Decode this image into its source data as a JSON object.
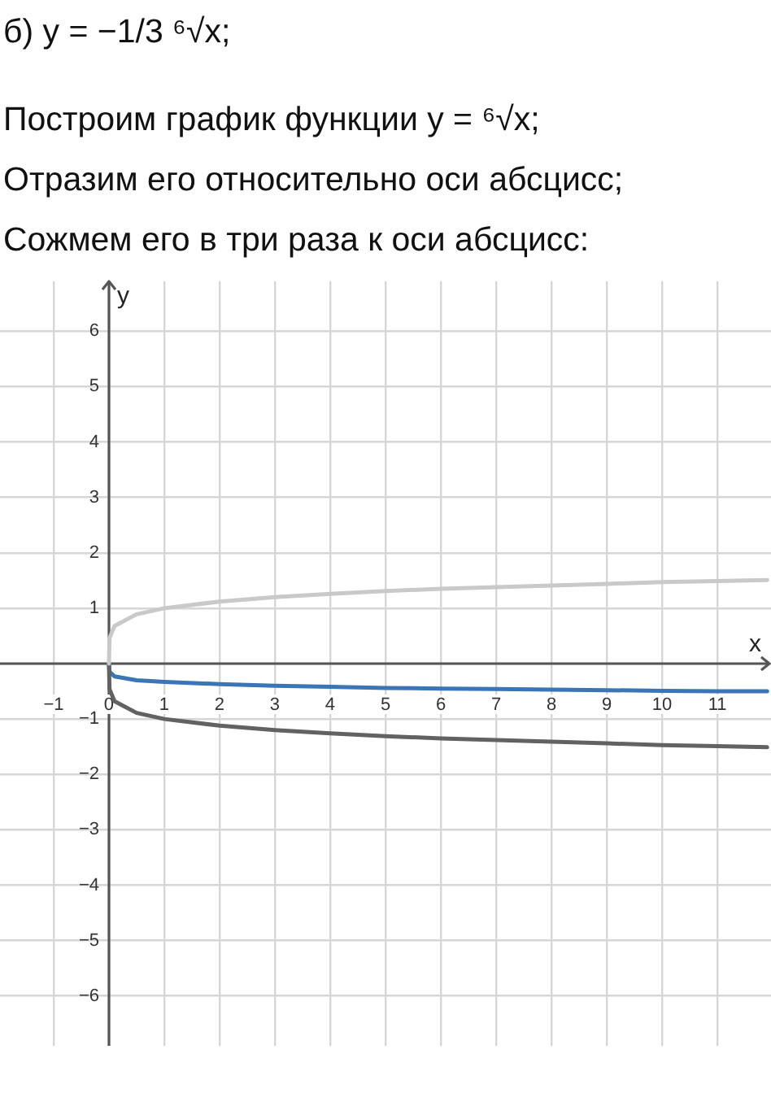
{
  "chart_data": {
    "type": "line",
    "title": "б) y = −1/3 ⁶√x;",
    "annotations": [
      "Построим график функции y = ⁶√x;",
      "Отразим его относительно оси абсцисс;",
      "Сожмем его в три раза к оси абсцисс:"
    ],
    "xlabel": "x",
    "ylabel": "y",
    "x": [
      0,
      0.01,
      0.1,
      0.5,
      1,
      2,
      3,
      4,
      5,
      6,
      7,
      8,
      9,
      10,
      11,
      11.9
    ],
    "series": [
      {
        "color": "#c9c9c9",
        "values": [
          0,
          0.46,
          0.68,
          0.89,
          1,
          1.12,
          1.2,
          1.26,
          1.31,
          1.35,
          1.38,
          1.41,
          1.44,
          1.47,
          1.49,
          1.51
        ]
      },
      {
        "color": "#626262",
        "values": [
          0,
          -0.46,
          -0.68,
          -0.89,
          -1,
          -1.12,
          -1.2,
          -1.26,
          -1.31,
          -1.35,
          -1.38,
          -1.41,
          -1.44,
          -1.47,
          -1.49,
          -1.51
        ]
      },
      {
        "color": "#3a75b5",
        "values": [
          0,
          -0.15,
          -0.23,
          -0.3,
          -0.33,
          -0.37,
          -0.4,
          -0.42,
          -0.44,
          -0.45,
          -0.46,
          -0.47,
          -0.48,
          -0.49,
          -0.5,
          -0.5
        ]
      }
    ],
    "xlim": [
      -1.97,
      11.97
    ],
    "ylim": [
      -6.9,
      6.9
    ],
    "xticks": [
      {
        "value": -1,
        "label": "−1"
      },
      0,
      1,
      2,
      3,
      4,
      5,
      6,
      7,
      8,
      9,
      10,
      11
    ],
    "yticks": [
      {
        "value": -6,
        "label": "−6"
      },
      {
        "value": -5,
        "label": "−5"
      },
      {
        "value": -4,
        "label": "−4"
      },
      {
        "value": -3,
        "label": "−3"
      },
      {
        "value": -2,
        "label": "−2"
      },
      {
        "value": -1,
        "label": "−1"
      },
      {
        "value": 0,
        "label": null
      },
      1,
      2,
      3,
      4,
      5,
      6
    ],
    "grid": true
  }
}
